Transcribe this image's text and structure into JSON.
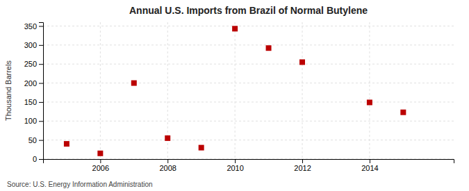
{
  "chart_data": {
    "type": "scatter",
    "title": "Annual U.S. Imports from Brazil of Normal Butylene",
    "ylabel": "Thousand Barrels",
    "annotations": [
      "Source: U.S. Energy Information Administration"
    ],
    "x": [
      2005,
      2006,
      2007,
      2008,
      2009,
      2010,
      2011,
      2012,
      2014,
      2015
    ],
    "values": [
      40,
      15,
      200,
      55,
      30,
      343,
      292,
      255,
      149,
      123
    ],
    "xlim": [
      2004.3,
      2016.5
    ],
    "xticks": [
      2006,
      2008,
      2010,
      2012,
      2014
    ],
    "ylim": [
      0,
      360
    ],
    "yticks": [
      0,
      50,
      100,
      150,
      200,
      250,
      300,
      350
    ],
    "color": "#bb0000",
    "marker": "square",
    "grid": true
  }
}
